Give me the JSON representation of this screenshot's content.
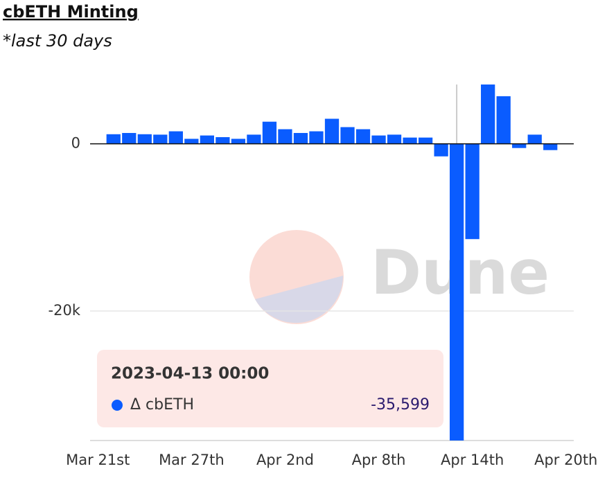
{
  "chart_data": {
    "type": "bar",
    "title": "cbETH Minting",
    "subtitle": "*last 30 days",
    "watermark": "Dune",
    "x": [
      "2023-03-22T00:00",
      "2023-03-23T00:00",
      "2023-03-24T00:00",
      "2023-03-25T00:00",
      "2023-03-26T00:00",
      "2023-03-27T00:00",
      "2023-03-28T00:00",
      "2023-03-29T00:00",
      "2023-03-30T00:00",
      "2023-03-31T00:00",
      "2023-04-01T00:00",
      "2023-04-02T00:00",
      "2023-04-03T00:00",
      "2023-04-04T00:00",
      "2023-04-05T00:00",
      "2023-04-06T00:00",
      "2023-04-07T00:00",
      "2023-04-08T00:00",
      "2023-04-09T00:00",
      "2023-04-10T00:00",
      "2023-04-11T00:00",
      "2023-04-12T00:00",
      "2023-04-13T00:00",
      "2023-04-14T00:00",
      "2023-04-15T00:00",
      "2023-04-16T00:00",
      "2023-04-17T00:00",
      "2023-04-18T00:00",
      "2023-04-19T00:00"
    ],
    "series": [
      {
        "name": "Δ cbETH",
        "color": "#0a5cff",
        "values": [
          1150,
          1300,
          1150,
          1100,
          1500,
          600,
          1000,
          800,
          600,
          1100,
          2650,
          1750,
          1300,
          1500,
          3000,
          2000,
          1750,
          1000,
          1100,
          750,
          750,
          -1500,
          -35599,
          -11400,
          7100,
          5700,
          -500,
          1100,
          -750
        ]
      }
    ],
    "xlim": [
      "2023-03-20T12:00",
      "2023-04-20T12:00"
    ],
    "xticks": [
      {
        "value": "2023-03-21T00:00",
        "label": "Mar 21st"
      },
      {
        "value": "2023-03-27T00:00",
        "label": "Mar 27th"
      },
      {
        "value": "2023-04-02T00:00",
        "label": "Apr 2nd"
      },
      {
        "value": "2023-04-08T00:00",
        "label": "Apr 8th"
      },
      {
        "value": "2023-04-14T00:00",
        "label": "Apr 14th"
      },
      {
        "value": "2023-04-20T00:00",
        "label": "Apr 20th"
      }
    ],
    "ylim": [
      -35500,
      7100
    ],
    "yticks": [
      0,
      {
        "value": -20000,
        "label": "-20k"
      }
    ],
    "grid": true,
    "tooltip": {
      "x": "2023-04-13 00:00",
      "index": 22,
      "label": "-35,599"
    }
  }
}
